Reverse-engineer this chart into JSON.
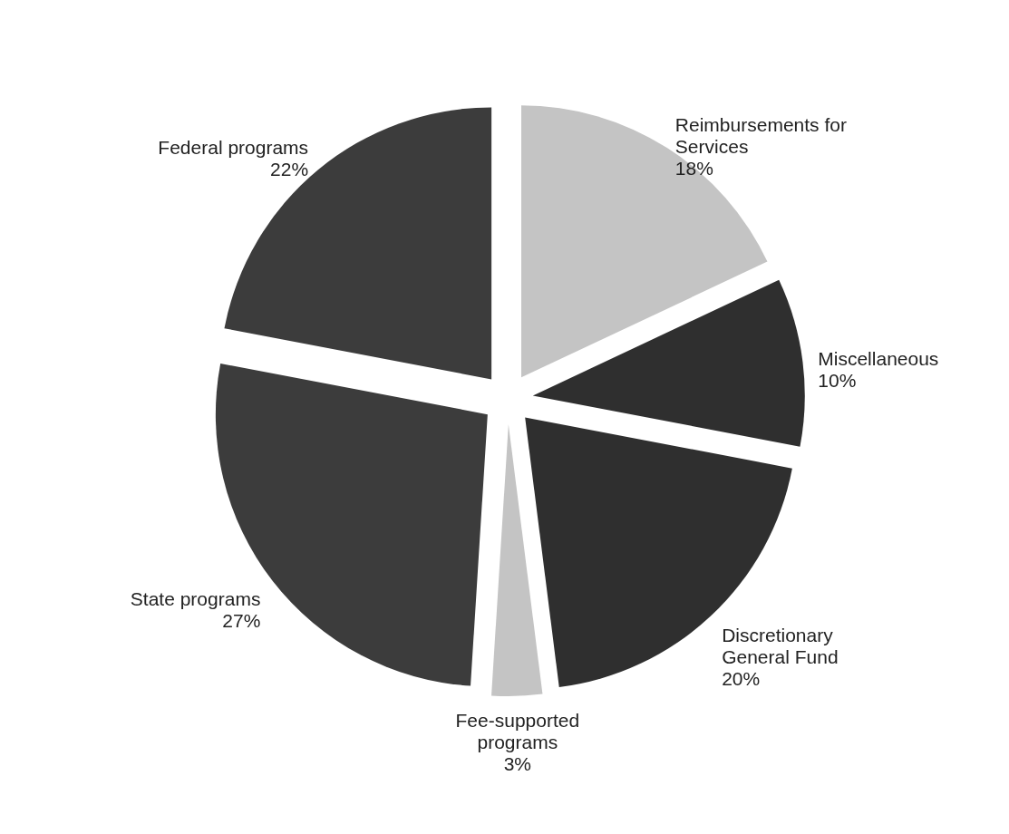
{
  "chart_data": {
    "type": "pie",
    "categories": [
      "Reimbursements for Services",
      "Miscellaneous",
      "Discretionary General Fund",
      "Fee-supported programs",
      "State programs",
      "Federal programs"
    ],
    "values": [
      18,
      10,
      20,
      3,
      27,
      22
    ],
    "value_labels": [
      "18%",
      "10%",
      "20%",
      "3%",
      "27%",
      "22%"
    ],
    "colors": [
      "#c4c4c4",
      "#2f2f2f",
      "#2f2f2f",
      "#c4c4c4",
      "#3c3c3c",
      "#3c3c3c"
    ]
  }
}
